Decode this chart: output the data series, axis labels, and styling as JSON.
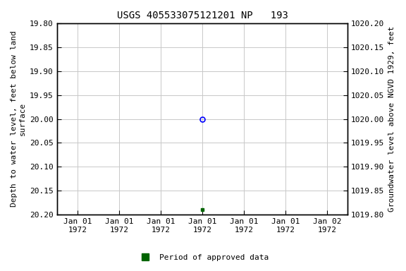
{
  "title": "USGS 405533075121201 NP   193",
  "left_ylabel": "Depth to water level, feet below land\nsurface",
  "right_ylabel": "Groundwater level above NGVD 1929, feet",
  "ylim_left_top": 19.8,
  "ylim_left_bottom": 20.2,
  "ylim_right_top": 1020.2,
  "ylim_right_bottom": 1019.8,
  "left_yticks": [
    19.8,
    19.85,
    19.9,
    19.95,
    20.0,
    20.05,
    20.1,
    20.15,
    20.2
  ],
  "right_yticks": [
    1020.2,
    1020.15,
    1020.1,
    1020.05,
    1020.0,
    1019.95,
    1019.9,
    1019.85,
    1019.8
  ],
  "blue_point_x": 3,
  "blue_point_y": 20.0,
  "green_point_x": 3,
  "green_point_y": 20.19,
  "xlim": [
    -0.5,
    6.5
  ],
  "xtick_positions": [
    0,
    1,
    2,
    3,
    4,
    5,
    6
  ],
  "xtick_labels": [
    "Jan 01\n1972",
    "Jan 01\n1972",
    "Jan 01\n1972",
    "Jan 01\n1972",
    "Jan 01\n1972",
    "Jan 01\n1972",
    "Jan 02\n1972"
  ],
  "legend_label": "Period of approved data",
  "legend_color": "#006400",
  "bg_color": "#ffffff",
  "grid_color": "#c8c8c8",
  "title_fontsize": 10,
  "axis_label_fontsize": 8,
  "tick_fontsize": 8
}
